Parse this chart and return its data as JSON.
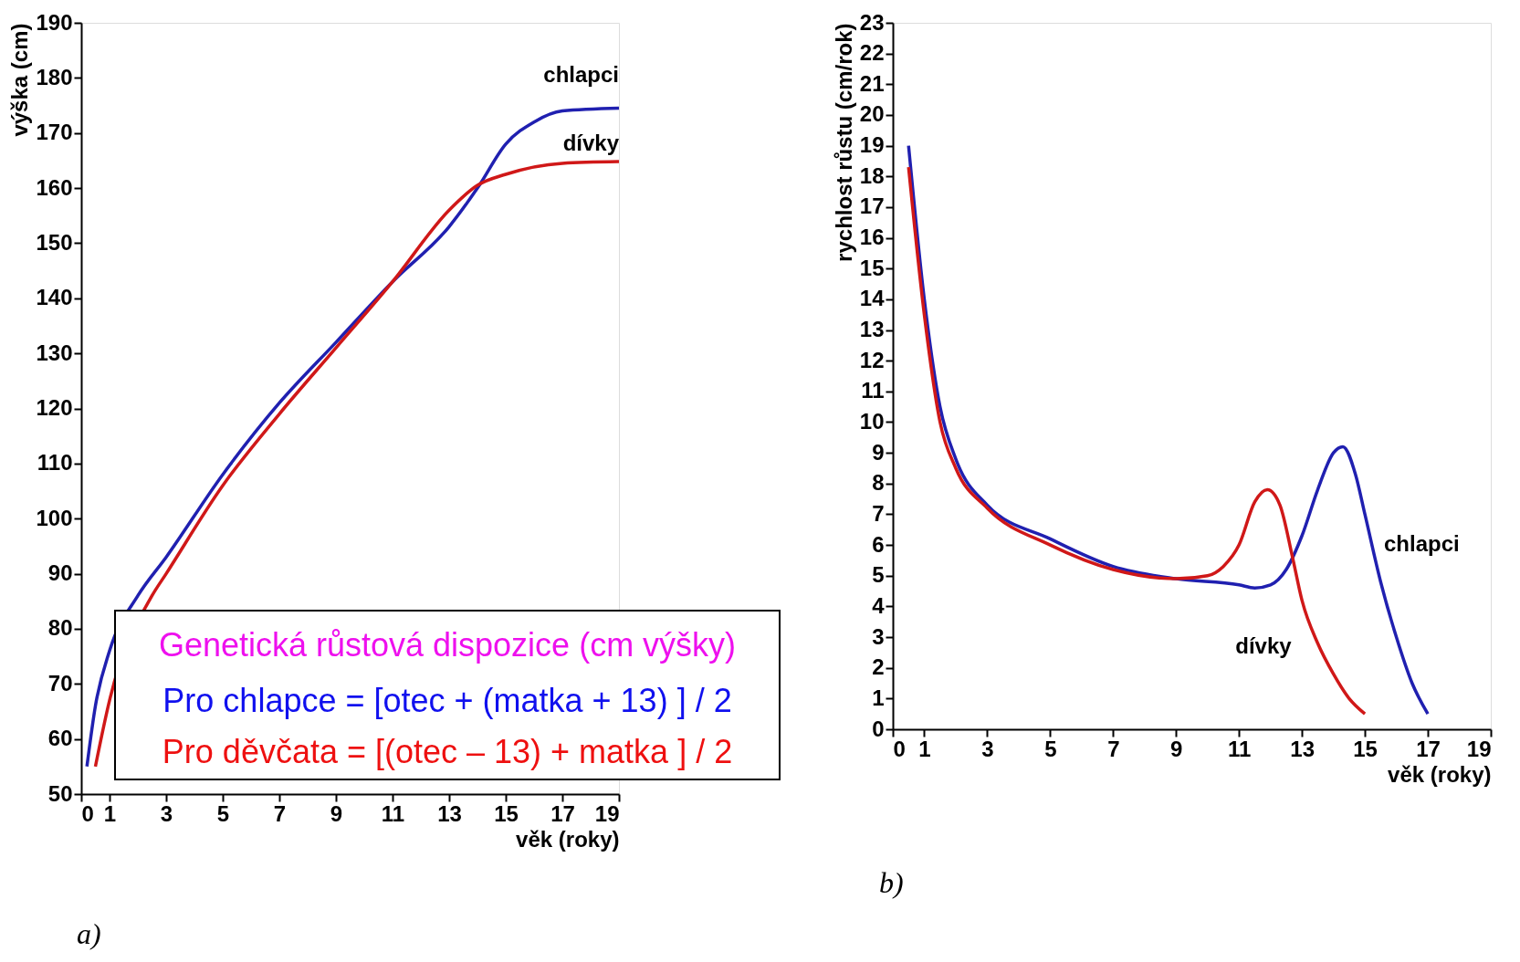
{
  "chart_data": [
    {
      "type": "line",
      "xlabel": "věk (roky)",
      "ylabel": "výška (cm)",
      "xlim": [
        0,
        19
      ],
      "ylim": [
        50,
        190
      ],
      "xticks": [
        0,
        1,
        3,
        5,
        7,
        9,
        11,
        13,
        15,
        17,
        19
      ],
      "yticks": [
        50,
        60,
        70,
        80,
        90,
        100,
        110,
        120,
        130,
        140,
        150,
        160,
        170,
        180,
        190
      ],
      "grid": false,
      "legend": false,
      "series": [
        {
          "name": "chlapci",
          "color": "#2020b0",
          "x": [
            0.2,
            0.5,
            1,
            2,
            3,
            5,
            7,
            9,
            11,
            13,
            14,
            15,
            16,
            17,
            19
          ],
          "values": [
            55,
            66,
            76,
            86,
            93,
            108,
            121,
            132,
            143,
            153,
            160,
            168,
            172,
            174,
            174.5
          ]
        },
        {
          "name": "dívky",
          "color": "#d01818",
          "x": [
            0.5,
            1,
            2.5,
            3,
            5,
            7,
            9,
            11,
            13,
            14,
            15,
            17,
            19
          ],
          "values": [
            55,
            67,
            86,
            90,
            106,
            119,
            131,
            143,
            156,
            160.5,
            162.5,
            164.5,
            164.8
          ]
        }
      ],
      "annotations": [
        "Genetická růstová dispozice (cm výšky)",
        "Pro chlapce = [otec  +  (matka + 13) ] / 2",
        "Pro děvčata = [(otec – 13)  +  matka ] / 2",
        "a)"
      ]
    },
    {
      "type": "line",
      "xlabel": "věk (roky)",
      "ylabel": "rychlost růstu (cm/rok)",
      "xlim": [
        0,
        19
      ],
      "ylim": [
        0,
        23
      ],
      "xticks": [
        0,
        1,
        3,
        5,
        7,
        9,
        11,
        13,
        15,
        17,
        19
      ],
      "yticks": [
        0,
        1,
        2,
        3,
        4,
        5,
        6,
        7,
        8,
        9,
        10,
        11,
        12,
        13,
        14,
        15,
        16,
        17,
        18,
        19,
        20,
        21,
        22,
        23
      ],
      "grid": false,
      "legend": false,
      "series": [
        {
          "name": "chlapci",
          "color": "#2020b0",
          "x": [
            0.5,
            1,
            1.5,
            2,
            3,
            5,
            7,
            9,
            11,
            11.5,
            12,
            12.5,
            13,
            13.5,
            14,
            14.3,
            14.7,
            15,
            15.5,
            16,
            16.5,
            17
          ],
          "values": [
            19,
            14,
            10.5,
            8.8,
            7.3,
            6.2,
            5.3,
            4.9,
            4.7,
            4.6,
            4.7,
            5.2,
            6.3,
            7.8,
            9,
            9.2,
            8.3,
            7,
            4.8,
            3,
            1.5,
            0.5
          ]
        },
        {
          "name": "dívky",
          "color": "#d01818",
          "x": [
            0.5,
            1,
            1.5,
            2,
            3,
            5,
            7,
            9,
            10,
            10.5,
            11,
            11.5,
            11.9,
            12.3,
            12.7,
            13,
            13.5,
            14,
            14.5,
            15
          ],
          "values": [
            18.3,
            13.5,
            10,
            8.5,
            7.2,
            6,
            5.2,
            4.9,
            5,
            5.3,
            6,
            7.4,
            7.8,
            7.3,
            5.6,
            4.2,
            2.8,
            1.8,
            1,
            0.5
          ]
        }
      ],
      "annotations": [
        "b)"
      ]
    }
  ]
}
